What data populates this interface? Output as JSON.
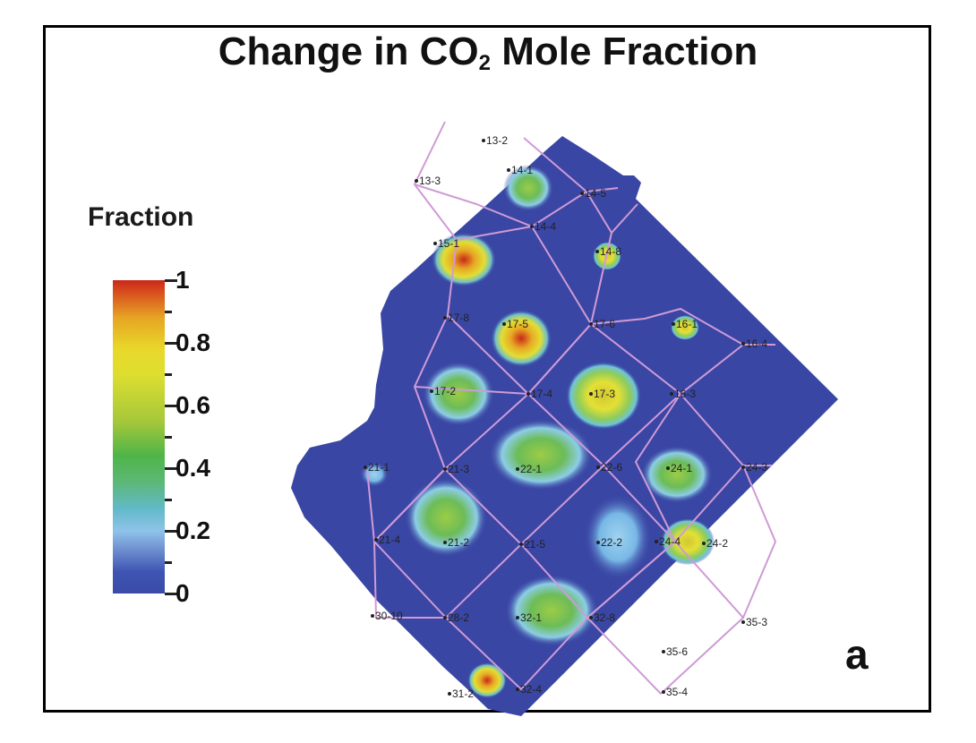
{
  "figure": {
    "title_main": "Change in CO",
    "title_sub": "2",
    "title_rest": " Mole Fraction",
    "panel_letter": "a"
  },
  "legend": {
    "title": "Fraction",
    "tick_labels": [
      "1",
      "0.8",
      "0.6",
      "0.4",
      "0.2",
      "0"
    ],
    "range": [
      0,
      1
    ],
    "colors": {
      "low": "#3a4aa8",
      "mid_low": "#8fc3ea",
      "mid": "#4fb548",
      "mid_high": "#dede30",
      "high": "#c8281a"
    }
  },
  "map": {
    "background_color": "#3a46a4",
    "grid_color": "#cf9ad6",
    "wells": [
      "13-2",
      "13-3",
      "14-1",
      "14-5",
      "14-4",
      "15-1",
      "14-8",
      "17-8",
      "17-5",
      "17-6",
      "16-1",
      "16-4",
      "17-2",
      "17-4",
      "17-3",
      "16-3",
      "21-1",
      "21-3",
      "22-1",
      "22-6",
      "24-1",
      "24-3",
      "21-4",
      "21-2",
      "21-5",
      "22-2",
      "24-4",
      "24-2",
      "30-10",
      "28-2",
      "32-1",
      "32-8",
      "35-3",
      "35-6",
      "31-2",
      "32-4",
      "35-4"
    ]
  }
}
